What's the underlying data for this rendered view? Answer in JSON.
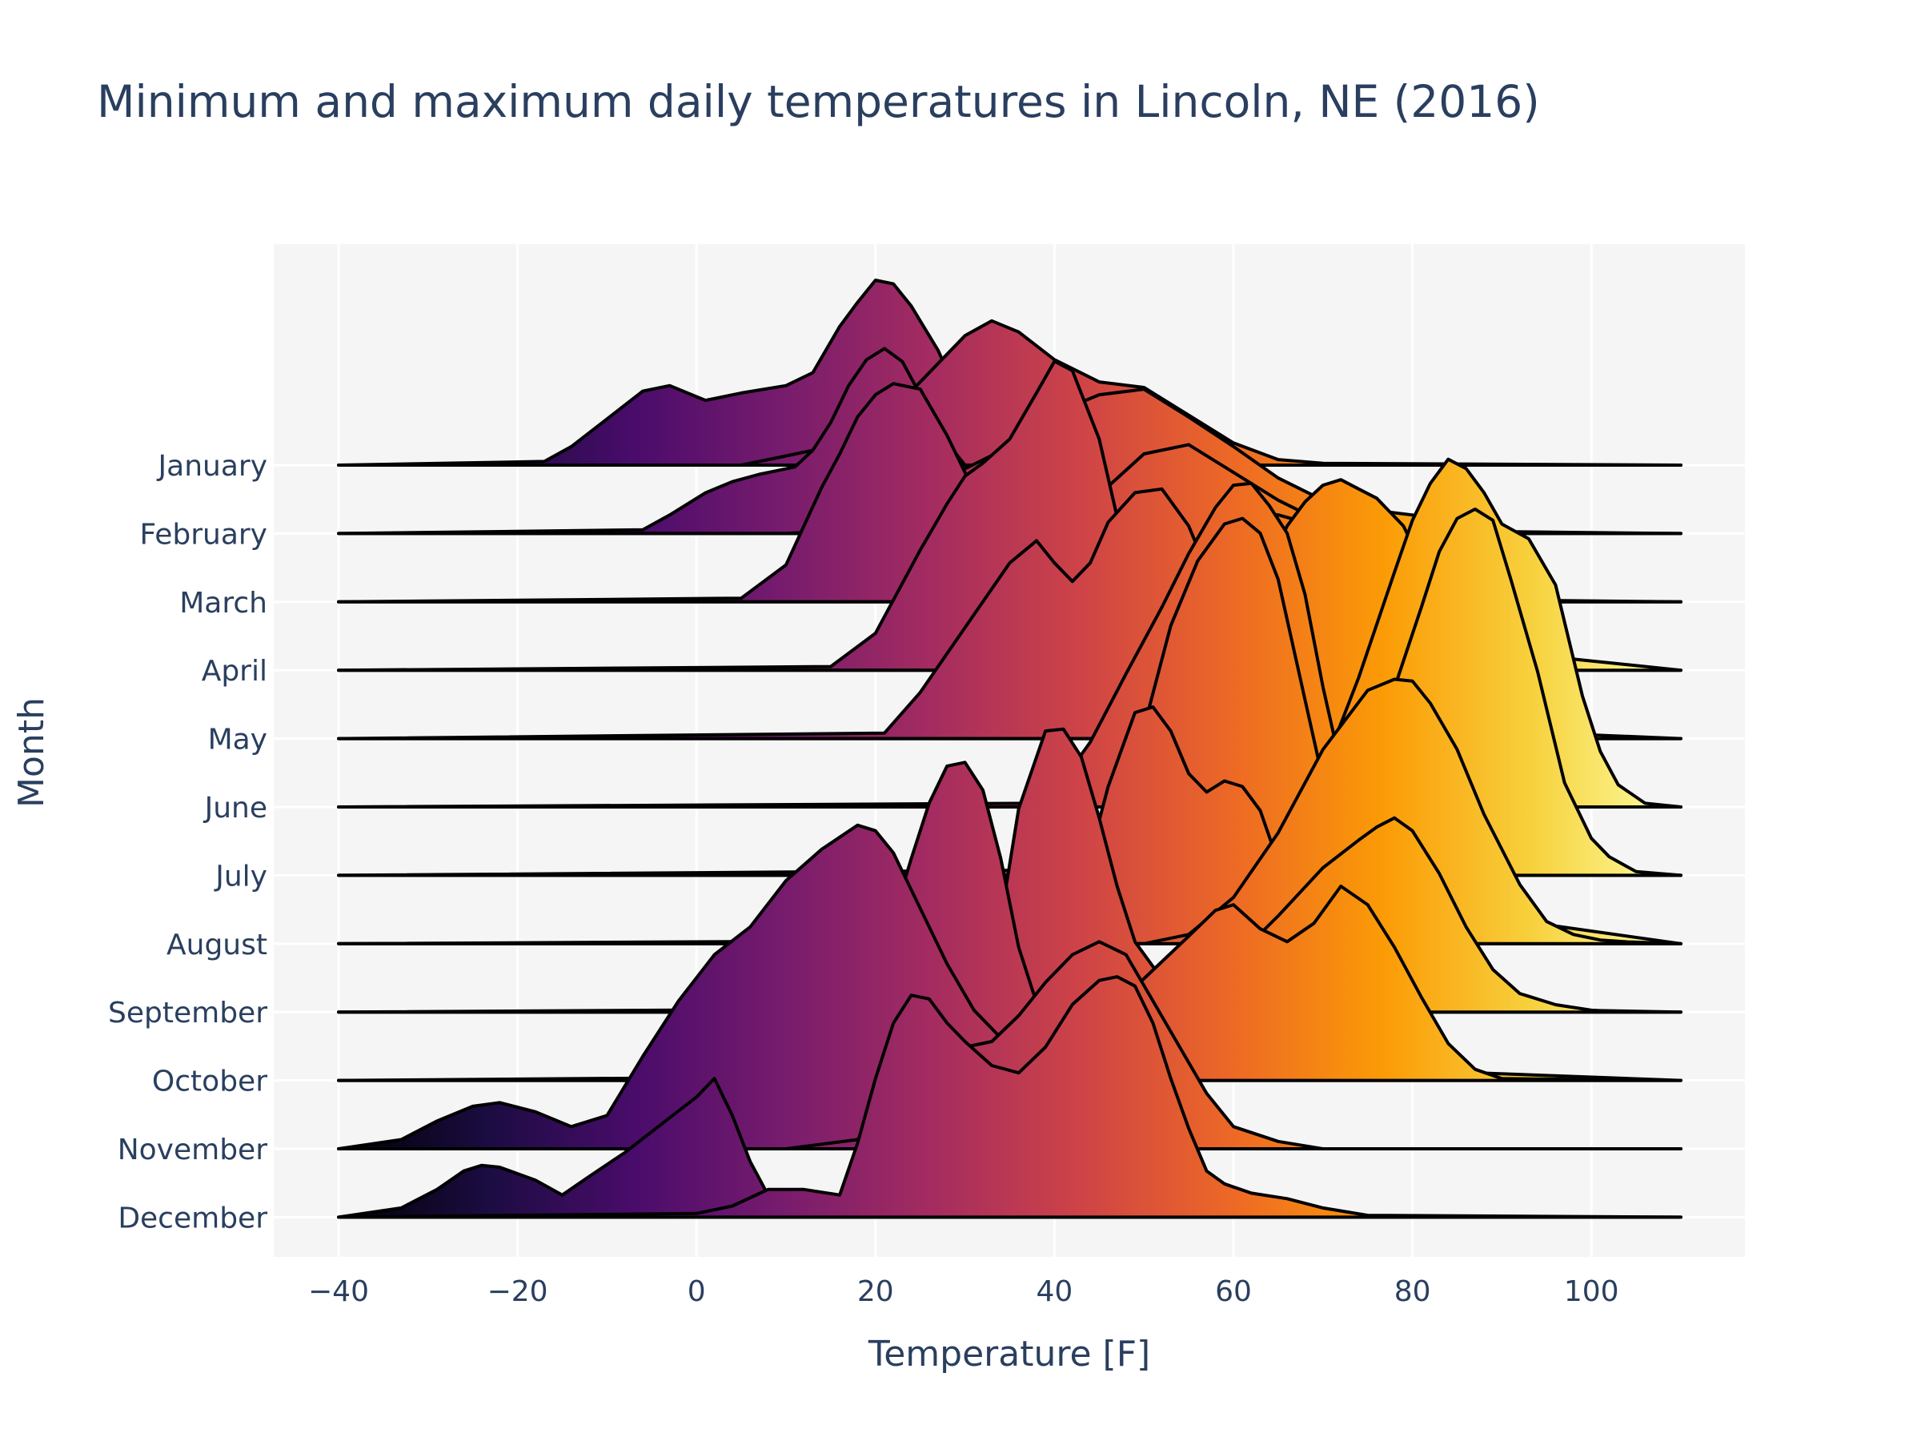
{
  "chart_data": {
    "type": "ridgeline",
    "title": "Minimum and maximum daily temperatures in Lincoln, NE (2016)",
    "xlabel": "Temperature [F]",
    "ylabel": "Month",
    "xlim": [
      -40,
      110
    ],
    "x_ticks": [
      "−40",
      "−20",
      "0",
      "20",
      "40",
      "60",
      "80",
      "100"
    ],
    "x_tick_values": [
      -40,
      -20,
      0,
      20,
      40,
      60,
      80,
      100
    ],
    "grid": true,
    "background": "#f5f5f5",
    "colorscale": "Inferno",
    "colorscale_stops": [
      "#000004",
      "#1b0c41",
      "#4a0c6b",
      "#781c6d",
      "#a52c60",
      "#cf4446",
      "#ed6925",
      "#fb9b06",
      "#f7d13d",
      "#fcffa4"
    ],
    "colorscale_range": [
      -40,
      110
    ],
    "categories": [
      "January",
      "February",
      "March",
      "April",
      "May",
      "June",
      "July",
      "August",
      "September",
      "October",
      "November",
      "December"
    ],
    "series": [
      {
        "name": "January",
        "min_temp_density": {
          "x": [
            -40,
            -17,
            -14,
            -10,
            -6,
            -3,
            1,
            5,
            10,
            13,
            16,
            18,
            20,
            22,
            24,
            27,
            32,
            40
          ],
          "y": [
            0,
            0.02,
            0.1,
            0.25,
            0.4,
            0.43,
            0.35,
            0.39,
            0.43,
            0.5,
            0.75,
            0.88,
            1.0,
            0.98,
            0.86,
            0.62,
            0.08,
            0
          ]
        },
        "max_temp_density": {
          "x": [
            5,
            10,
            15,
            20,
            25,
            30,
            33,
            36,
            40,
            45,
            50,
            55,
            60,
            65,
            70,
            110
          ],
          "y": [
            0,
            0.05,
            0.1,
            0.2,
            0.45,
            0.7,
            0.78,
            0.72,
            0.57,
            0.45,
            0.42,
            0.27,
            0.12,
            0.03,
            0.01,
            0
          ]
        }
      },
      {
        "name": "February",
        "min_temp_density": {
          "x": [
            -40,
            -6,
            -3,
            1,
            4,
            7,
            9,
            11,
            13,
            15,
            17,
            19,
            21,
            23,
            25,
            27,
            30,
            33,
            36,
            40
          ],
          "y": [
            0,
            0.02,
            0.1,
            0.22,
            0.28,
            0.32,
            0.34,
            0.36,
            0.45,
            0.6,
            0.8,
            0.94,
            1.0,
            0.93,
            0.75,
            0.55,
            0.37,
            0.2,
            0.07,
            0
          ]
        },
        "max_temp_density": {
          "x": [
            10,
            17,
            20,
            25,
            30,
            35,
            40,
            45,
            50,
            55,
            60,
            65,
            70,
            75,
            80,
            85,
            90,
            110
          ],
          "y": [
            0,
            0.02,
            0.15,
            0.2,
            0.35,
            0.47,
            0.65,
            0.75,
            0.78,
            0.63,
            0.47,
            0.3,
            0.18,
            0.13,
            0.1,
            0.06,
            0.01,
            0
          ]
        }
      },
      {
        "name": "March",
        "min_temp_density": {
          "x": [
            -40,
            5,
            10,
            14,
            16,
            18,
            20,
            22,
            25,
            28,
            31,
            34,
            37,
            40,
            45,
            50
          ],
          "y": [
            0,
            0.02,
            0.2,
            0.62,
            0.8,
            1.0,
            1.12,
            1.18,
            1.15,
            0.9,
            0.6,
            0.35,
            0.12,
            0.04,
            0.01,
            0
          ]
        },
        "max_temp_density": {
          "x": [
            25,
            30,
            35,
            40,
            45,
            50,
            55,
            60,
            65,
            70,
            75,
            80,
            85,
            90,
            110
          ],
          "y": [
            0,
            0.12,
            0.2,
            0.38,
            0.58,
            0.8,
            0.85,
            0.7,
            0.55,
            0.43,
            0.3,
            0.18,
            0.07,
            0.01,
            0
          ]
        }
      },
      {
        "name": "April",
        "min_temp_density": {
          "x": [
            -40,
            15,
            20,
            25,
            28,
            30,
            32,
            35,
            38,
            40,
            42,
            45,
            48,
            52,
            55,
            60
          ],
          "y": [
            0,
            0.02,
            0.2,
            0.65,
            0.9,
            1.05,
            1.12,
            1.25,
            1.5,
            1.67,
            1.62,
            1.25,
            0.62,
            0.15,
            0.03,
            0
          ]
        },
        "max_temp_density": {
          "x": [
            40,
            45,
            50,
            55,
            58,
            60,
            62,
            65,
            68,
            70,
            72,
            75,
            80,
            85,
            90,
            110
          ],
          "y": [
            0,
            0.18,
            0.45,
            0.63,
            0.72,
            0.8,
            0.85,
            0.84,
            0.8,
            0.75,
            0.72,
            0.6,
            0.5,
            0.3,
            0.1,
            0
          ]
        }
      },
      {
        "name": "May",
        "min_temp_density": {
          "x": [
            -40,
            21,
            25,
            30,
            35,
            38,
            40,
            42,
            44,
            46,
            49,
            52,
            55,
            58,
            60,
            63,
            66
          ],
          "y": [
            0,
            0.03,
            0.25,
            0.6,
            0.95,
            1.07,
            0.95,
            0.85,
            0.95,
            1.17,
            1.33,
            1.35,
            1.15,
            0.8,
            0.45,
            0.15,
            0
          ]
        },
        "max_temp_density": {
          "x": [
            50,
            55,
            60,
            62,
            64,
            66,
            68,
            70,
            72,
            74,
            76,
            79,
            82,
            85,
            88,
            91,
            95,
            110
          ],
          "y": [
            0,
            0.15,
            0.45,
            0.7,
            0.95,
            1.15,
            1.28,
            1.37,
            1.4,
            1.35,
            1.3,
            1.15,
            0.85,
            0.55,
            0.3,
            0.12,
            0.03,
            0
          ]
        }
      },
      {
        "name": "June",
        "min_temp_density": {
          "x": [
            -40,
            37,
            40,
            44,
            48,
            52,
            55,
            58,
            60,
            62,
            64,
            66,
            68,
            70,
            72,
            74
          ],
          "y": [
            0,
            0.02,
            0.08,
            0.35,
            0.72,
            1.08,
            1.37,
            1.62,
            1.74,
            1.75,
            1.63,
            1.48,
            1.15,
            0.65,
            0.22,
            0
          ]
        },
        "max_temp_density": {
          "x": [
            66,
            70,
            74,
            78,
            80,
            82,
            84,
            86,
            88,
            90,
            93,
            96,
            99,
            101,
            103,
            106,
            110
          ],
          "y": [
            0,
            0.2,
            0.7,
            1.27,
            1.55,
            1.75,
            1.88,
            1.83,
            1.7,
            1.53,
            1.45,
            1.2,
            0.6,
            0.3,
            0.12,
            0.02,
            0
          ]
        }
      },
      {
        "name": "July",
        "min_temp_density": {
          "x": [
            -40,
            44,
            47,
            50,
            53,
            56,
            59,
            61,
            63,
            65,
            68,
            71,
            73
          ],
          "y": [
            0,
            0.03,
            0.2,
            0.8,
            1.35,
            1.7,
            1.9,
            1.93,
            1.85,
            1.6,
            0.95,
            0.3,
            0
          ]
        },
        "max_temp_density": {
          "x": [
            69,
            73,
            77,
            81,
            83,
            85,
            87,
            89,
            91,
            94,
            97,
            100,
            102,
            105,
            110
          ],
          "y": [
            0,
            0.3,
            0.87,
            1.45,
            1.75,
            1.93,
            1.98,
            1.92,
            1.6,
            1.1,
            0.5,
            0.2,
            0.1,
            0.02,
            0
          ]
        }
      },
      {
        "name": "August",
        "min_temp_density": {
          "x": [
            -40,
            40,
            43,
            46,
            49,
            51,
            53,
            55,
            57,
            59,
            61,
            63,
            66
          ],
          "y": [
            0,
            0.02,
            0.3,
            0.85,
            1.25,
            1.28,
            1.15,
            0.92,
            0.82,
            0.88,
            0.85,
            0.72,
            0.3
          ]
        },
        "max_temp_density": {
          "x": [
            50,
            55,
            60,
            65,
            70,
            75,
            78,
            80,
            82,
            85,
            88,
            92,
            95,
            98,
            101,
            104,
            110
          ],
          "y": [
            0,
            0.05,
            0.25,
            0.6,
            1.05,
            1.37,
            1.43,
            1.42,
            1.3,
            1.05,
            0.7,
            0.32,
            0.12,
            0.05,
            0.02,
            0.01,
            0
          ]
        }
      },
      {
        "name": "September",
        "min_temp_density": {
          "x": [
            -40,
            30,
            33,
            36,
            39,
            41,
            43,
            45,
            47,
            49,
            52,
            54
          ],
          "y": [
            0,
            0.02,
            0.2,
            1.1,
            1.52,
            1.53,
            1.38,
            1.05,
            0.68,
            0.38,
            0.18,
            0.05
          ]
        },
        "max_temp_density": {
          "x": [
            45,
            50,
            55,
            60,
            65,
            70,
            74,
            76,
            78,
            80,
            83,
            86,
            89,
            92,
            96,
            100,
            103,
            110
          ],
          "y": [
            0,
            0.05,
            0.12,
            0.28,
            0.52,
            0.78,
            0.93,
            1.0,
            1.05,
            0.98,
            0.75,
            0.46,
            0.23,
            0.1,
            0.04,
            0.01,
            0.0,
            0
          ]
        }
      },
      {
        "name": "October",
        "min_temp_density": {
          "x": [
            -40,
            15,
            18,
            20,
            22,
            24,
            26,
            28,
            30,
            32,
            34,
            36,
            38,
            40,
            43
          ],
          "y": [
            0,
            0.02,
            0.12,
            0.47,
            0.88,
            1.2,
            1.5,
            1.7,
            1.72,
            1.57,
            1.2,
            0.72,
            0.42,
            0.25,
            0.12
          ]
        },
        "max_temp_density": {
          "x": [
            30,
            35,
            40,
            45,
            50,
            55,
            58,
            60,
            63,
            66,
            69,
            72,
            75,
            78,
            81,
            84,
            87,
            90,
            110
          ],
          "y": [
            0,
            0.08,
            0.2,
            0.35,
            0.55,
            0.78,
            0.92,
            0.95,
            0.82,
            0.75,
            0.85,
            1.05,
            0.95,
            0.72,
            0.45,
            0.2,
            0.06,
            0.01,
            0
          ]
        }
      },
      {
        "name": "November",
        "min_temp_density": {
          "x": [
            -40,
            -33,
            -29,
            -25,
            -22,
            -18,
            -14,
            -10,
            -6,
            -2,
            2,
            6,
            10,
            14,
            18,
            20,
            22,
            25,
            28,
            31,
            34,
            37,
            40,
            43,
            45,
            48,
            52,
            56,
            60,
            65
          ],
          "y": [
            0,
            0.05,
            0.15,
            0.23,
            0.25,
            0.2,
            0.12,
            0.18,
            0.5,
            0.8,
            1.05,
            1.2,
            1.45,
            1.62,
            1.75,
            1.72,
            1.6,
            1.3,
            1.0,
            0.75,
            0.6,
            0.5,
            0.48,
            0.52,
            0.55,
            0.4,
            0.22,
            0.08,
            0.02,
            0
          ]
        },
        "max_temp_density": {
          "x": [
            10,
            18,
            22,
            25,
            27,
            30,
            33,
            36,
            39,
            42,
            45,
            48,
            51,
            54,
            57,
            60,
            65,
            70
          ],
          "y": [
            0,
            0.05,
            0.3,
            0.55,
            0.62,
            0.55,
            0.58,
            0.72,
            0.9,
            1.05,
            1.12,
            1.05,
            0.8,
            0.55,
            0.3,
            0.12,
            0.04,
            0
          ]
        }
      },
      {
        "name": "December",
        "min_temp_density": {
          "x": [
            -40,
            -33,
            -29,
            -26,
            -24,
            -22,
            -18,
            -15,
            -12,
            -8,
            -4,
            0,
            2,
            4,
            6,
            8,
            10,
            12
          ],
          "y": [
            0,
            0.05,
            0.15,
            0.25,
            0.28,
            0.27,
            0.2,
            0.12,
            0.22,
            0.35,
            0.5,
            0.65,
            0.75,
            0.55,
            0.3,
            0.12,
            0.03,
            0
          ]
        },
        "max_temp_density": {
          "x": [
            -40,
            0,
            4,
            8,
            12,
            16,
            18,
            20,
            22,
            24,
            26,
            28,
            30,
            33,
            36,
            39,
            42,
            45,
            47,
            49,
            51,
            53,
            55,
            57,
            59,
            62,
            66,
            70,
            75,
            110
          ],
          "y": [
            0,
            0.02,
            0.06,
            0.15,
            0.15,
            0.12,
            0.4,
            0.75,
            1.05,
            1.2,
            1.18,
            1.05,
            0.95,
            0.82,
            0.78,
            0.92,
            1.15,
            1.28,
            1.3,
            1.25,
            1.05,
            0.75,
            0.48,
            0.25,
            0.18,
            0.13,
            0.1,
            0.05,
            0.01,
            0
          ]
        }
      }
    ]
  }
}
